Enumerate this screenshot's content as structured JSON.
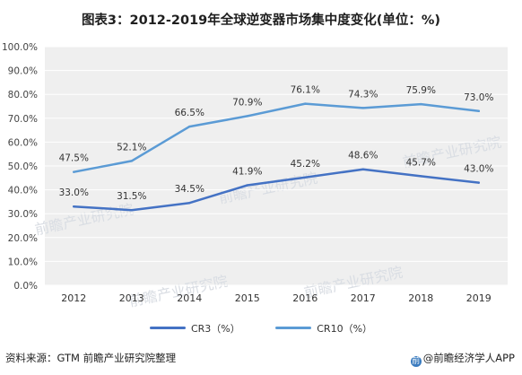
{
  "title": "图表3：2012-2019年全球逆变器市场集中度变化(单位：%)",
  "source": "资料来源：GTM   前瞻产业研究院整理",
  "brand": "@前瞻经济学人APP",
  "brand_mark": "前",
  "watermark_text": "前瞻产业研究院",
  "colors": {
    "cr3": "#4472c4",
    "cr10": "#5b9bd5",
    "plot_bg": "#efefef",
    "grid": "#ffffff"
  },
  "chart_data": {
    "type": "line",
    "x": [
      "2012",
      "2013",
      "2014",
      "2015",
      "2016",
      "2017",
      "2018",
      "2019"
    ],
    "series": [
      {
        "name": "CR3（%）",
        "values": [
          33.0,
          31.5,
          34.5,
          41.9,
          45.2,
          48.6,
          45.7,
          43.0
        ],
        "labels": [
          "33.0%",
          "31.5%",
          "34.5%",
          "41.9%",
          "45.2%",
          "48.6%",
          "45.7%",
          "43.0%"
        ]
      },
      {
        "name": "CR10（%）",
        "values": [
          47.5,
          52.1,
          66.5,
          70.9,
          76.1,
          74.3,
          75.9,
          73.0
        ],
        "labels": [
          "47.5%",
          "52.1%",
          "66.5%",
          "70.9%",
          "76.1%",
          "74.3%",
          "75.9%",
          "73.0%"
        ]
      }
    ],
    "yticks": [
      "0.0%",
      "10.0%",
      "20.0%",
      "30.0%",
      "40.0%",
      "50.0%",
      "60.0%",
      "70.0%",
      "80.0%",
      "90.0%",
      "100.0%"
    ],
    "ylim": [
      0,
      100
    ],
    "grid": true,
    "legend": "bottom"
  }
}
